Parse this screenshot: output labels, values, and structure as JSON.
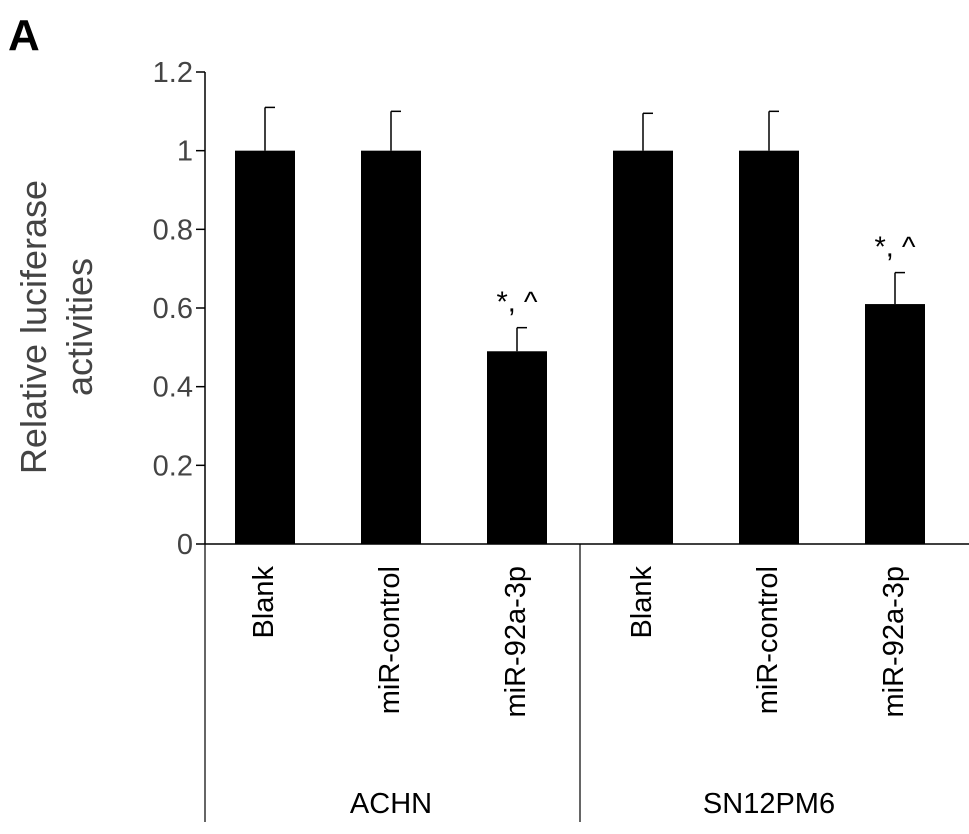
{
  "panel_label": "A",
  "chart_data": {
    "type": "bar",
    "categories": [
      "Blank",
      "miR-control",
      "miR-92a-3p",
      "Blank",
      "miR-control",
      "miR-92a-3p"
    ],
    "groups": [
      {
        "label": "ACHN",
        "categories": [
          0,
          1,
          2
        ]
      },
      {
        "label": "SN12PM6",
        "categories": [
          3,
          4,
          5
        ]
      }
    ],
    "values": [
      1.0,
      1.0,
      0.49,
      1.0,
      1.0,
      0.61
    ],
    "errors": [
      0.11,
      0.1,
      0.06,
      0.095,
      0.1,
      0.08
    ],
    "annotations": [
      "",
      "",
      "*, ^",
      "",
      "",
      "*, ^"
    ],
    "ylabel_lines": [
      "Relative luciferase",
      "activities"
    ],
    "xlabel": "",
    "title": "",
    "ylim": [
      0,
      1.2
    ],
    "yticks": [
      0,
      0.2,
      0.4,
      0.6,
      0.8,
      1,
      1.2
    ],
    "ytick_labels": [
      "0",
      "0.2",
      "0.4",
      "0.6",
      "0.8",
      "1",
      "1.2"
    ],
    "bar_color": "#000000",
    "grid": false,
    "legend": "none"
  }
}
